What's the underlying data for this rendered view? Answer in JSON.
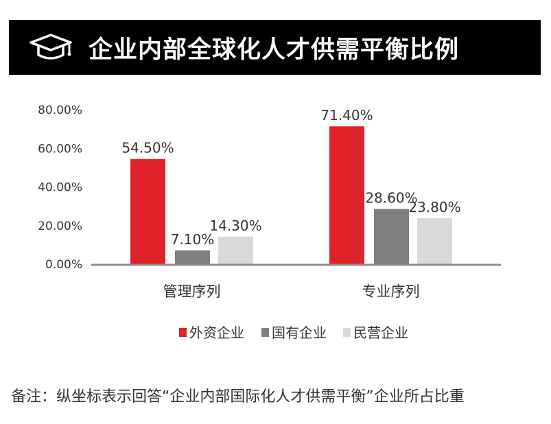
{
  "header": {
    "title": "企业内部全球化人才供需平衡比例",
    "icon": "graduation-cap-icon"
  },
  "chart_data": {
    "type": "bar",
    "title": "",
    "categories": [
      "管理序列",
      "专业序列"
    ],
    "series": [
      {
        "name": "外资企业",
        "color": "#e0232b",
        "values": [
          54.5,
          71.4
        ],
        "labels": [
          "54.50%",
          "71.40%"
        ]
      },
      {
        "name": "国有企业",
        "color": "#7f7f7f",
        "values": [
          7.1,
          28.6
        ],
        "labels": [
          "7.10%",
          "28.60%"
        ]
      },
      {
        "name": "民营企业",
        "color": "#d9d9d9",
        "values": [
          14.3,
          23.8
        ],
        "labels": [
          "14.30%",
          "23.80%"
        ]
      }
    ],
    "ylim": [
      0,
      80
    ],
    "yticks": [
      0,
      20,
      40,
      60,
      80
    ],
    "ytick_labels": [
      "0.00%",
      "20.00%",
      "40.00%",
      "60.00%",
      "80.00%"
    ],
    "xlabel": "",
    "ylabel": "",
    "grid": false,
    "legend_position": "bottom"
  },
  "footnote": "备注：纵坐标表示回答“企业内部国际化人才供需平衡”企业所占比重"
}
